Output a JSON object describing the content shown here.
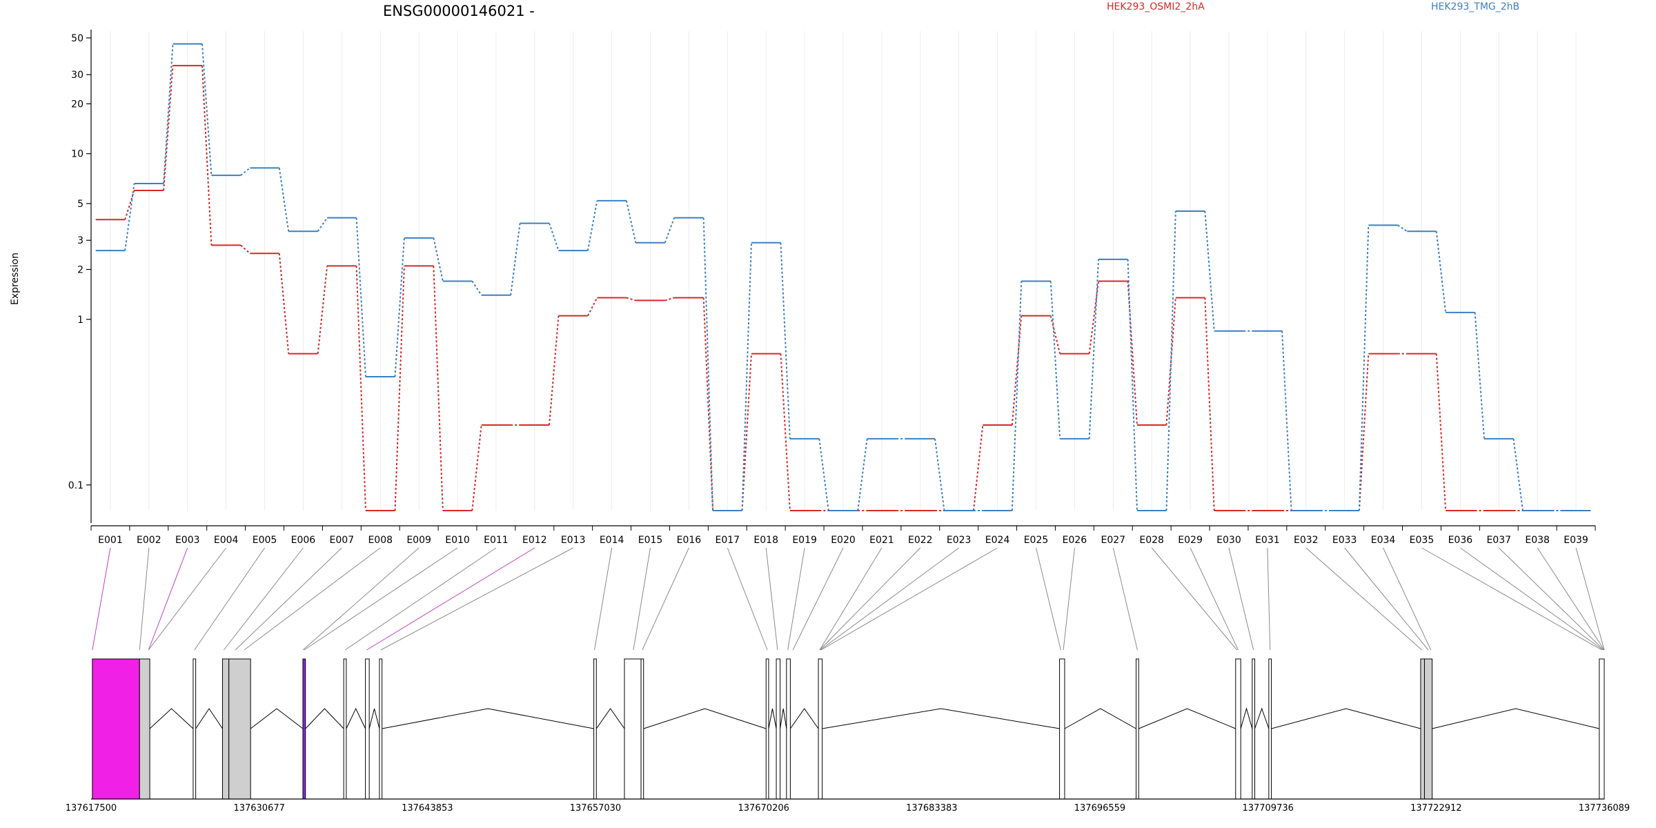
{
  "chart_data": {
    "type": "line",
    "title": "ENSG00000146021 -",
    "ylabel": "Expression",
    "y_scale": "log",
    "ylim": [
      0.07,
      55
    ],
    "y_ticks": [
      0.1,
      1,
      2,
      3,
      5,
      10,
      20,
      30,
      50
    ],
    "categories": [
      "E001",
      "E002",
      "E003",
      "E004",
      "E005",
      "E006",
      "E007",
      "E008",
      "E009",
      "E010",
      "E011",
      "E012",
      "E013",
      "E014",
      "E015",
      "E016",
      "E017",
      "E018",
      "E019",
      "E020",
      "E021",
      "E022",
      "E023",
      "E024",
      "E025",
      "E026",
      "E027",
      "E028",
      "E029",
      "E030",
      "E031",
      "E032",
      "E033",
      "E034",
      "E035",
      "E036",
      "E037",
      "E038",
      "E039"
    ],
    "series": [
      {
        "name": "HEK293_OSMI2_2hA",
        "color": "#d62728",
        "values": [
          4.0,
          6.0,
          34,
          2.8,
          2.5,
          0.62,
          2.1,
          0.07,
          2.1,
          0.07,
          0.23,
          0.23,
          1.05,
          1.35,
          1.3,
          1.35,
          0.07,
          0.62,
          0.07,
          0.07,
          0.07,
          0.07,
          0.07,
          0.23,
          1.05,
          0.62,
          1.7,
          0.23,
          1.35,
          0.07,
          0.07,
          0.07,
          0.07,
          0.62,
          0.62,
          0.07,
          0.07,
          0.07,
          0.07
        ]
      },
      {
        "name": "HEK293_TMG_2hB",
        "color": "#3a7fc1",
        "values": [
          2.6,
          6.6,
          46,
          7.4,
          8.2,
          3.4,
          4.1,
          0.45,
          3.1,
          1.7,
          1.4,
          3.8,
          2.6,
          5.2,
          2.9,
          4.1,
          0.07,
          2.9,
          0.19,
          0.07,
          0.19,
          0.19,
          0.07,
          0.07,
          1.7,
          0.19,
          2.3,
          0.07,
          4.5,
          0.85,
          0.85,
          0.07,
          0.07,
          3.7,
          3.4,
          1.1,
          0.19,
          0.07,
          0.07
        ]
      }
    ],
    "genomic_axis": {
      "ticks": [
        "137617500",
        "137630677",
        "137643853",
        "137657030",
        "137670206",
        "137683383",
        "137696559",
        "137709736",
        "137722912",
        "137736089"
      ],
      "range": [
        137617500,
        137736089
      ]
    },
    "grid": true,
    "legend_placement": "top"
  }
}
